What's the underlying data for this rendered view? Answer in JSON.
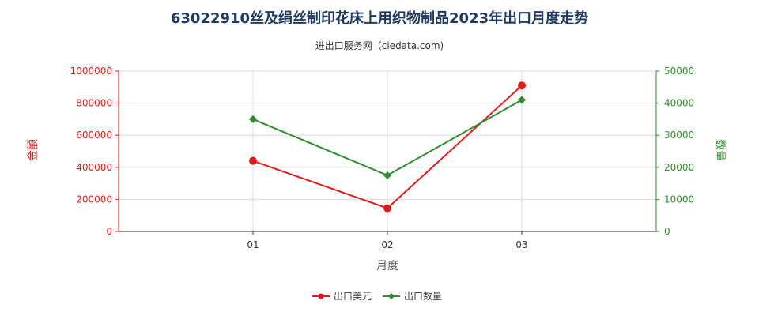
{
  "chart_data": {
    "type": "line",
    "title": "63022910丝及绢丝制印花床上用织物制品2023年出口月度走势",
    "subtitle": "进出口服务网（ciedata.com)",
    "categories": [
      "01",
      "02",
      "03"
    ],
    "xlabel": "月度",
    "ylabel_left": "金额",
    "ylabel_right": "数量",
    "ylim_left": [
      0,
      1000000
    ],
    "ylim_right": [
      0,
      50000
    ],
    "yticks_left": [
      "0",
      "200000",
      "400000",
      "600000",
      "800000",
      "1000000"
    ],
    "yticks_right": [
      "0",
      "10000",
      "20000",
      "30000",
      "40000",
      "50000"
    ],
    "grid": true,
    "legend_position": "bottom",
    "series": [
      {
        "name": "出口美元",
        "axis": "left",
        "color": "#e31a1c",
        "marker": "circle",
        "values": [
          440000,
          145000,
          910000
        ]
      },
      {
        "name": "出口数量",
        "axis": "right",
        "color": "#2e8b2e",
        "marker": "diamond",
        "values": [
          35000,
          17500,
          41000
        ]
      }
    ]
  }
}
